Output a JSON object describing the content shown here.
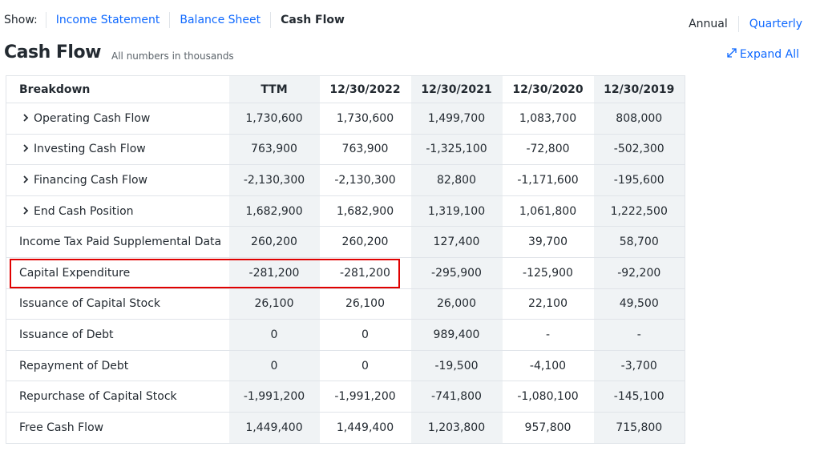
{
  "nav": {
    "label": "Show:",
    "tabs": [
      "Income Statement",
      "Balance Sheet",
      "Cash Flow"
    ]
  },
  "period_toggle": [
    "Annual",
    "Quarterly"
  ],
  "title": "Cash Flow",
  "subtitle": "All numbers in thousands",
  "expand_all": "Expand All",
  "table": {
    "columns": [
      "Breakdown",
      "TTM",
      "12/30/2022",
      "12/30/2021",
      "12/30/2020",
      "12/30/2019"
    ],
    "rows": [
      [
        "Operating Cash Flow",
        "1,730,600",
        "1,730,600",
        "1,499,700",
        "1,083,700",
        "808,000"
      ],
      [
        "Investing Cash Flow",
        "763,900",
        "763,900",
        "-1,325,100",
        "-72,800",
        "-502,300"
      ],
      [
        "Financing Cash Flow",
        "-2,130,300",
        "-2,130,300",
        "82,800",
        "-1,171,600",
        "-195,600"
      ],
      [
        "End Cash Position",
        "1,682,900",
        "1,682,900",
        "1,319,100",
        "1,061,800",
        "1,222,500"
      ],
      [
        "Income Tax Paid Supplemental Data",
        "260,200",
        "260,200",
        "127,400",
        "39,700",
        "58,700"
      ],
      [
        "Capital Expenditure",
        "-281,200",
        "-281,200",
        "-295,900",
        "-125,900",
        "-92,200"
      ],
      [
        "Issuance of Capital Stock",
        "26,100",
        "26,100",
        "26,000",
        "22,100",
        "49,500"
      ],
      [
        "Issuance of Debt",
        "0",
        "0",
        "989,400",
        "-",
        "-"
      ],
      [
        "Repayment of Debt",
        "0",
        "0",
        "-19,500",
        "-4,100",
        "-3,700"
      ],
      [
        "Repurchase of Capital Stock",
        "-1,991,200",
        "-1,991,200",
        "-741,800",
        "-1,080,100",
        "-145,100"
      ],
      [
        "Free Cash Flow",
        "1,449,400",
        "1,449,400",
        "1,203,800",
        "957,800",
        "715,800"
      ]
    ]
  }
}
